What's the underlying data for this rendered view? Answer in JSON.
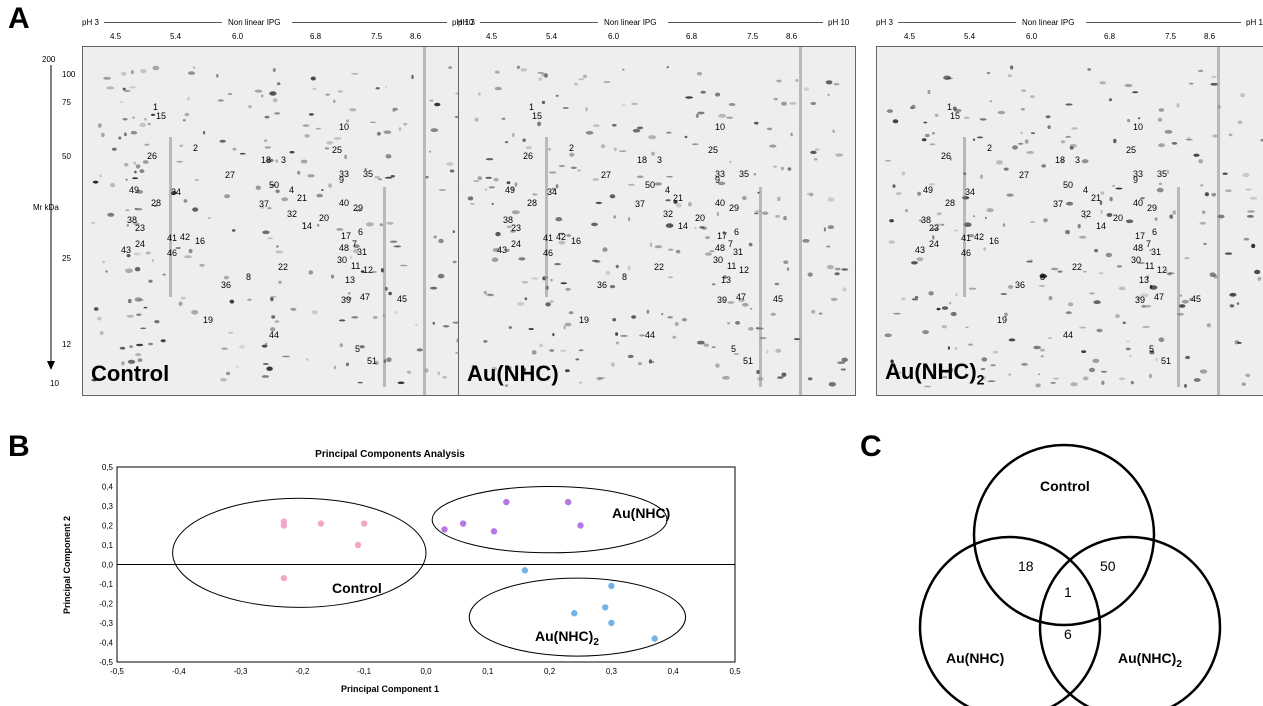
{
  "figure": {
    "panel_a_label": "A",
    "panel_b_label": "B",
    "panel_c_label": "C"
  },
  "gels": {
    "ph_left": "pH 3",
    "ph_mid": "Non linear IPG",
    "ph_right": "pH 10",
    "ph_right_cut": "pH 1",
    "ph_ticks": [
      "4.5",
      "5.4",
      "6.0",
      "6.8",
      "7.5",
      "8.6"
    ],
    "mr_axis": {
      "label": "Mr kDa",
      "ticks": [
        "200",
        "100",
        "75",
        "50",
        "25",
        "12",
        "10"
      ]
    },
    "spot_labels": [
      "1",
      "15",
      "10",
      "25",
      "26",
      "2",
      "18",
      "3",
      "27",
      "50",
      "33",
      "35",
      "9",
      "49",
      "28",
      "34",
      "37",
      "4",
      "21",
      "40",
      "29",
      "32",
      "20",
      "14",
      "6",
      "17",
      "38",
      "23",
      "41",
      "42",
      "16",
      "24",
      "43",
      "48",
      "7",
      "31",
      "30",
      "11",
      "12",
      "46",
      "22",
      "8",
      "36",
      "13",
      "39",
      "47",
      "45",
      "19",
      "44",
      "5",
      "51"
    ],
    "panels": [
      {
        "name": "Control"
      },
      {
        "name": "Au(NHC)"
      },
      {
        "name": "Au(NHC)",
        "name_sub": "2"
      }
    ]
  },
  "pca": {
    "title": "Principal Components Analysis",
    "xlabel": "Principal Component 1",
    "ylabel": "Principal Component 2",
    "xticks": [
      "-0,5",
      "-0,4",
      "-0,3",
      "-0,2",
      "-0,1",
      "0,0",
      "0,1",
      "0,2",
      "0,3",
      "0,4",
      "0,5"
    ],
    "yticks": [
      "0,5",
      "0,4",
      "0,3",
      "0,2",
      "0,1",
      "0,0",
      "-0,1",
      "-0,2",
      "-0,3",
      "-0,4",
      "-0,5"
    ],
    "groups": {
      "control": "Control",
      "au_nhc": "Au(NHC)",
      "au_nhc2": "Au(NHC)",
      "au_nhc2_sub": "2"
    }
  },
  "chart_data": {
    "type": "scatter",
    "title": "Principal Components Analysis",
    "xlabel": "Principal Component 1",
    "ylabel": "Principal Component 2",
    "xlim": [
      -0.5,
      0.5
    ],
    "ylim": [
      -0.5,
      0.5
    ],
    "series": [
      {
        "name": "Control",
        "color": "#f2a7c8",
        "points": [
          [
            -0.23,
            0.22
          ],
          [
            -0.23,
            0.2
          ],
          [
            -0.17,
            0.21
          ],
          [
            -0.1,
            0.21
          ],
          [
            -0.11,
            0.1
          ],
          [
            -0.23,
            -0.07
          ]
        ]
      },
      {
        "name": "Au(NHC)",
        "color": "#b576e6",
        "points": [
          [
            0.13,
            0.32
          ],
          [
            0.23,
            0.32
          ],
          [
            0.06,
            0.21
          ],
          [
            0.11,
            0.17
          ],
          [
            0.03,
            0.18
          ],
          [
            0.25,
            0.2
          ]
        ]
      },
      {
        "name": "Au(NHC)2",
        "color": "#74b3e6",
        "points": [
          [
            0.16,
            -0.03
          ],
          [
            0.3,
            -0.11
          ],
          [
            0.29,
            -0.22
          ],
          [
            0.24,
            -0.25
          ],
          [
            0.3,
            -0.3
          ],
          [
            0.37,
            -0.38
          ]
        ]
      }
    ]
  },
  "venn": {
    "labels": {
      "control": "Control",
      "au_nhc": "Au(NHC)",
      "au_nhc2": "Au(NHC)",
      "au_nhc2_sub": "2"
    },
    "counts": {
      "control_au_nhc": "18",
      "control_au_nhc2": "50",
      "all_three": "1",
      "au_nhc_au_nhc2": "6"
    }
  }
}
